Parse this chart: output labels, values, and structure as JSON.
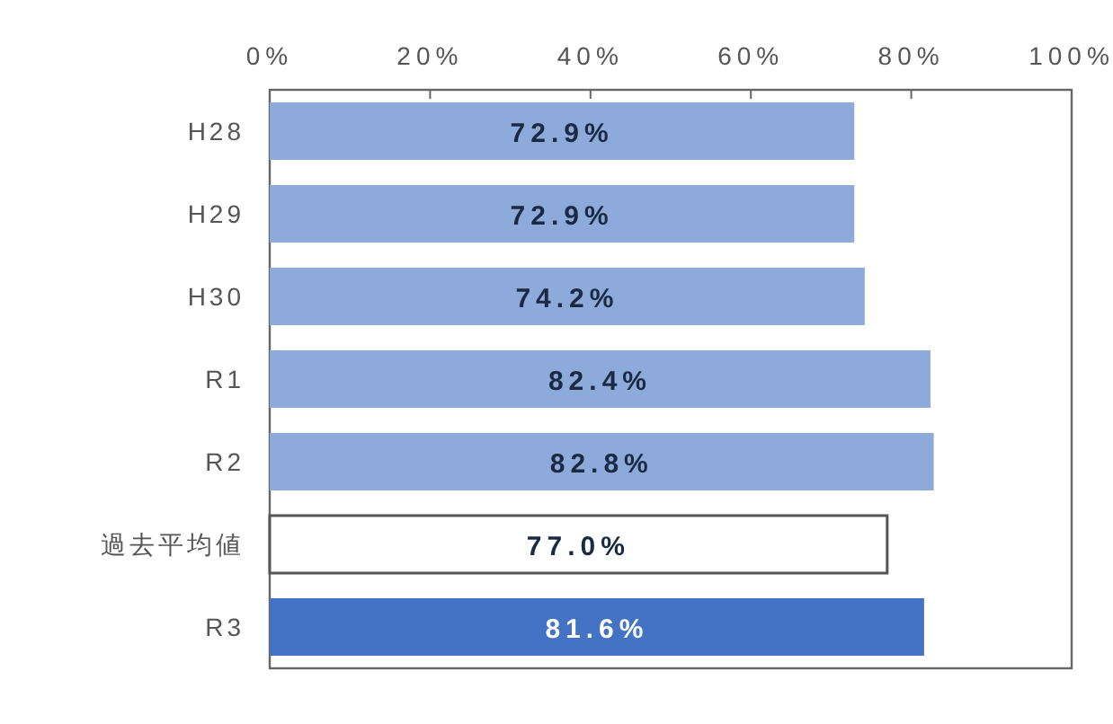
{
  "chart_data": {
    "type": "bar",
    "orientation": "horizontal",
    "categories": [
      "H28",
      "H29",
      "H30",
      "R1",
      "R2",
      "過去平均値",
      "R3"
    ],
    "values": [
      72.9,
      72.9,
      74.2,
      82.4,
      82.8,
      77.0,
      81.6
    ],
    "colors": [
      "#8eaadb",
      "#8eaadb",
      "#8eaadb",
      "#8eaadb",
      "#8eaadb",
      "#ffffff",
      "#4472c4"
    ],
    "value_labels": [
      "72.9%",
      "72.9%",
      "74.2%",
      "82.4%",
      "82.8%",
      "77.0%",
      "81.6%"
    ],
    "xlim": [
      0,
      100
    ],
    "xticks": [
      {
        "value": 0,
        "label": "0%"
      },
      {
        "value": 20,
        "label": "20%"
      },
      {
        "value": 40,
        "label": "40%"
      },
      {
        "value": 60,
        "label": "60%"
      },
      {
        "value": 80,
        "label": "80%"
      },
      {
        "value": 100,
        "label": "100%"
      }
    ],
    "grid": false
  }
}
